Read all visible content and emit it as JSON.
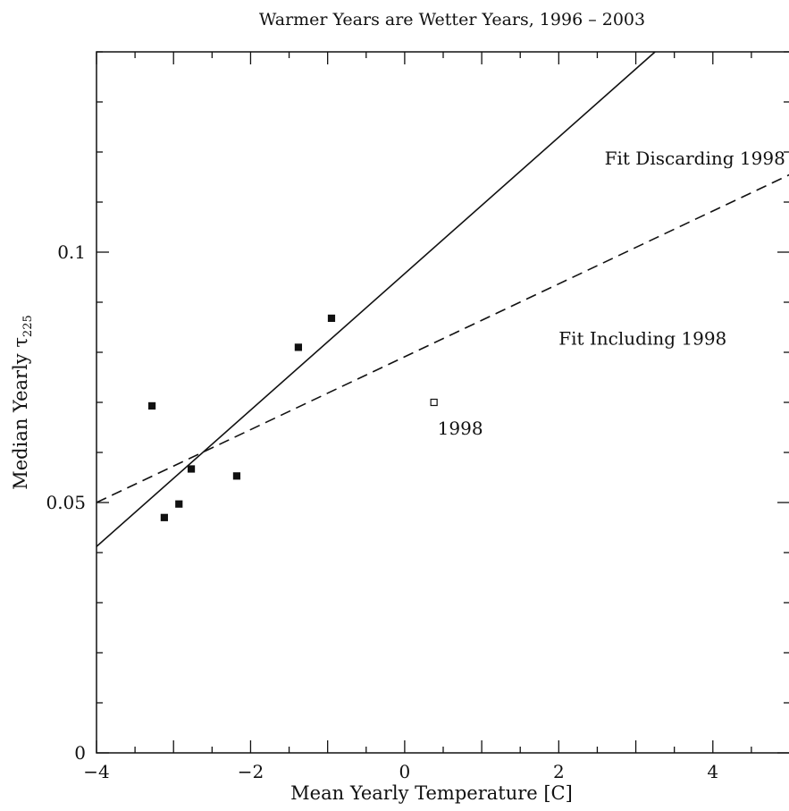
{
  "chart_data": {
    "type": "scatter",
    "title": "Warmer Years are Wetter Years, 1996 – 2003",
    "xlabel": "Mean Yearly Temperature [C]",
    "ylabel": "Median Yearly τ",
    "ylabel_subscript": "225",
    "xlim": [
      -4,
      5
    ],
    "ylim": [
      0,
      0.14
    ],
    "xticks": [
      {
        "value": -4,
        "label": "−4"
      },
      {
        "value": -2,
        "label": "−2"
      },
      {
        "value": 0,
        "label": "0"
      },
      {
        "value": 2,
        "label": "2"
      },
      {
        "value": 4,
        "label": "4"
      }
    ],
    "yticks": [
      {
        "value": 0,
        "label": "0"
      },
      {
        "value": 0.05,
        "label": "0.05"
      },
      {
        "value": 0.1,
        "label": "0.1"
      }
    ],
    "points": [
      {
        "x": -3.28,
        "y": 0.0693,
        "filled": true
      },
      {
        "x": -3.12,
        "y": 0.047,
        "filled": true
      },
      {
        "x": -2.93,
        "y": 0.0497,
        "filled": true
      },
      {
        "x": -2.77,
        "y": 0.0567,
        "filled": true
      },
      {
        "x": -2.18,
        "y": 0.0553,
        "filled": true
      },
      {
        "x": -1.38,
        "y": 0.081,
        "filled": true
      },
      {
        "x": -0.95,
        "y": 0.0868,
        "filled": true
      },
      {
        "x": 0.38,
        "y": 0.07,
        "filled": false
      }
    ],
    "point_label": {
      "text": "1998",
      "x": 0.38,
      "y": 0.07
    },
    "fits": [
      {
        "name": "Fit Discarding 1998",
        "style": "solid",
        "x": [
          -4,
          3.25
        ],
        "y": [
          0.0412,
          0.14
        ],
        "label_at": {
          "x": 4.94,
          "y": 0.1175
        }
      },
      {
        "name": "Fit Including 1998",
        "style": "dashed",
        "x": [
          -4,
          5
        ],
        "y": [
          0.05,
          0.1155
        ],
        "label_at": {
          "x": 4.18,
          "y": 0.0815
        }
      }
    ],
    "grid": false
  }
}
